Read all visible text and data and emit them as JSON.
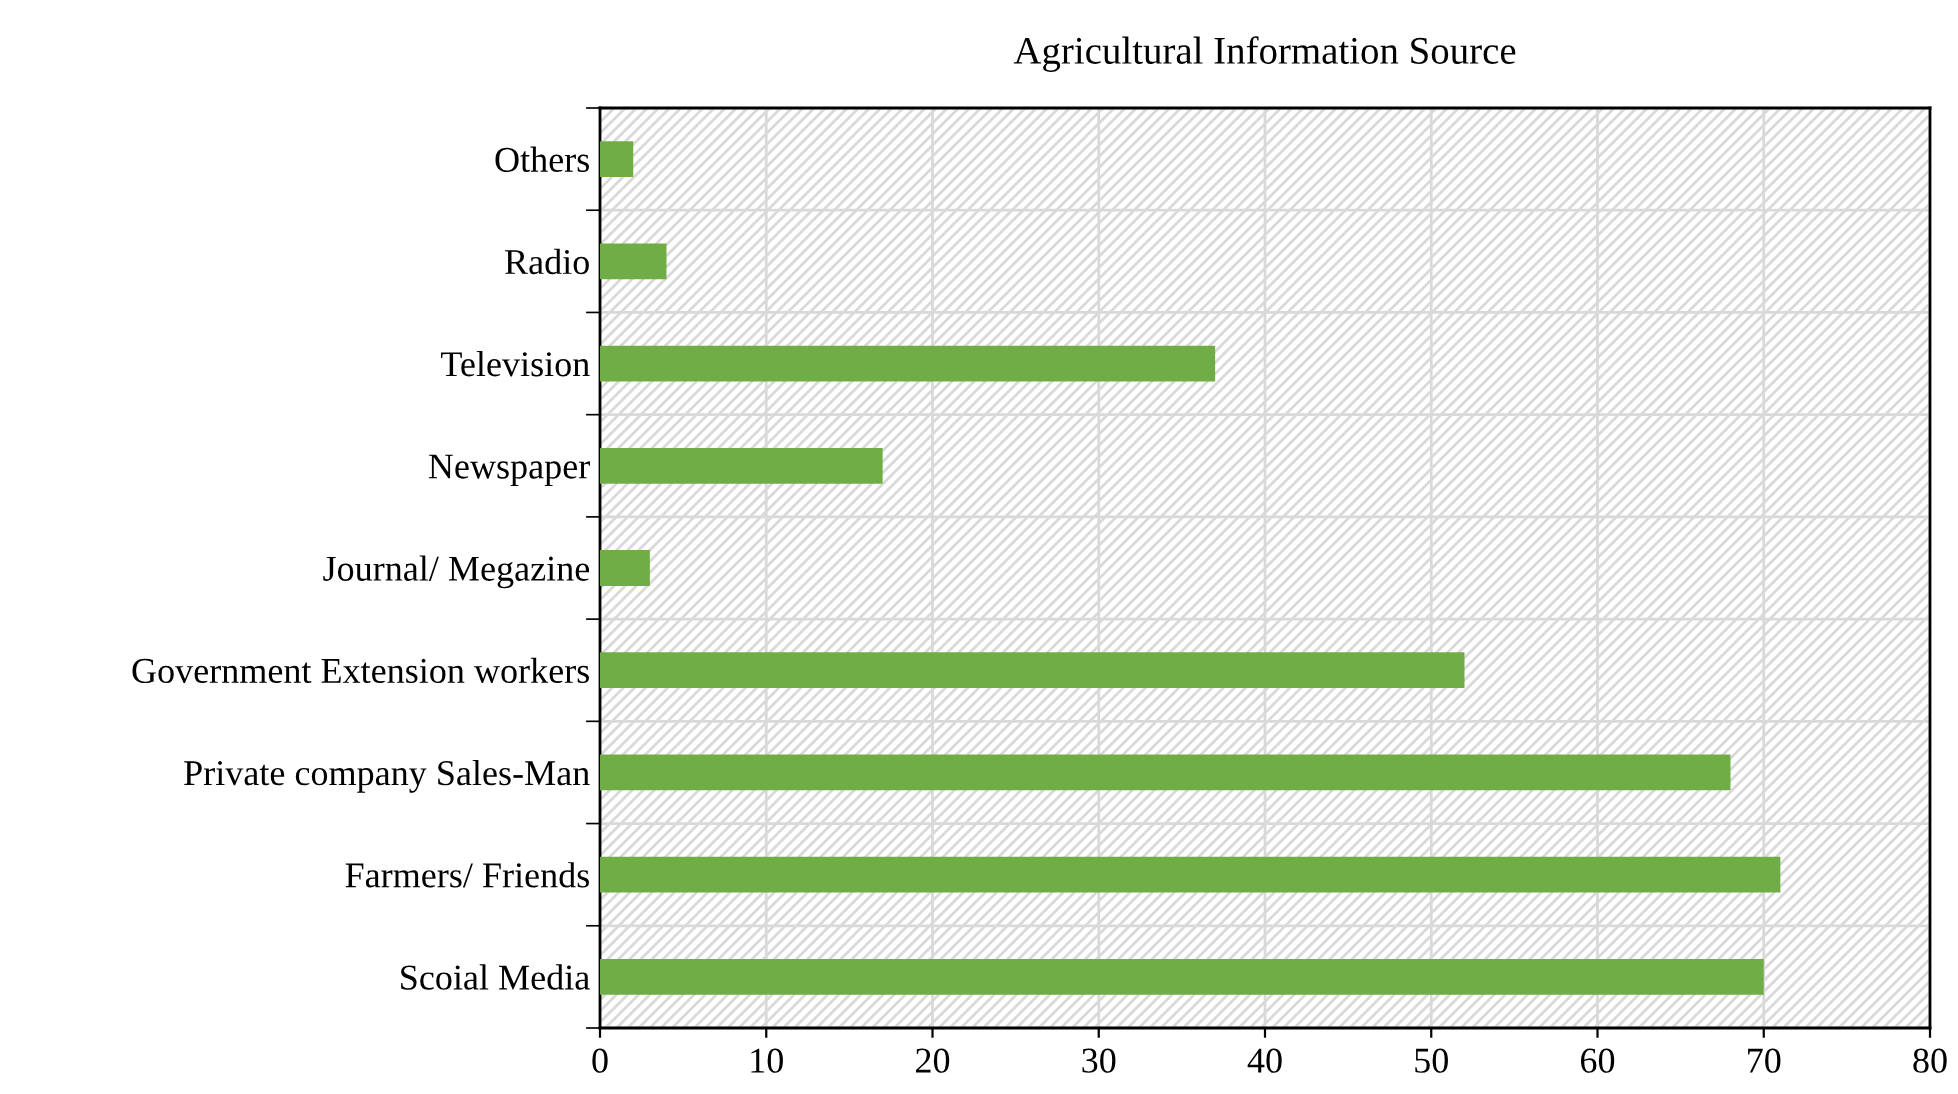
{
  "chart_data": {
    "type": "bar",
    "orientation": "horizontal",
    "title": "Agricultural Information Source",
    "categories": [
      "Others",
      "Radio",
      "Television",
      "Newspaper",
      "Journal/ Megazine",
      "Government Extension workers",
      "Private company Sales-Man",
      "Farmers/ Friends",
      "Scoial Media"
    ],
    "values": [
      2,
      4,
      37,
      17,
      3,
      52,
      68,
      71,
      70
    ],
    "color": "#70ad47",
    "xlim": [
      0,
      80
    ],
    "xticks": [
      0,
      10,
      20,
      30,
      40,
      50,
      60,
      70,
      80
    ],
    "grid": true
  }
}
